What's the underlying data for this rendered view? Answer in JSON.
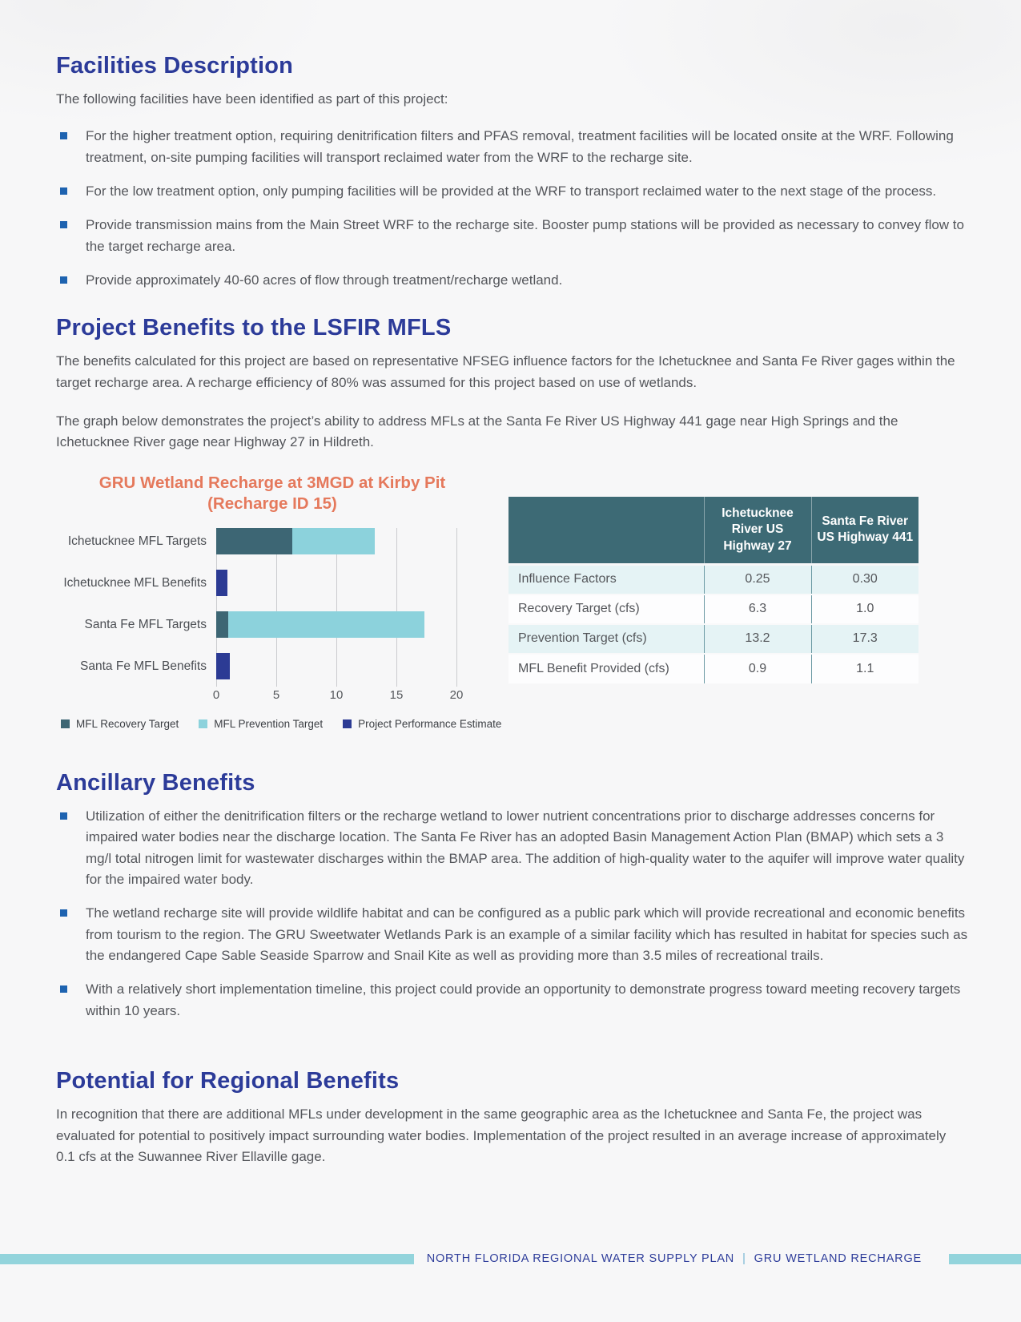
{
  "palette": {
    "heading_blue": "#2c3b99",
    "body_gray": "#54565b",
    "bullet_blue": "#1e63b0",
    "chart_title_salmon": "#e5795c",
    "table_header_teal": "#3d6a75",
    "table_row_tint": "#e5f3f5",
    "footer_bar_teal": "#93d4dc"
  },
  "facilities": {
    "title": "Facilities Description",
    "intro": "The following facilities have been identified as part of this project:",
    "bullets": [
      "For the higher treatment option, requiring denitrification filters and PFAS removal, treatment facilities will be located onsite at the WRF. Following treatment, on-site pumping facilities will transport reclaimed water from the WRF to the recharge site.",
      "For the low treatment option, only pumping facilities will be provided at the WRF to transport reclaimed water to the next stage of the process.",
      "Provide transmission mains from the Main Street WRF to the recharge site. Booster pump stations will be provided as necessary to convey flow to the target recharge area.",
      "Provide approximately 40-60 acres of flow through treatment/recharge wetland."
    ]
  },
  "project_benefits": {
    "title": "Project Benefits to the LSFIR MFLS",
    "paragraphs": [
      "The benefits calculated for this project are based on representative NFSEG influence factors for the Ichetucknee and Santa Fe River gages within the target recharge area. A recharge efficiency of 80% was assumed for this project based on use of wetlands.",
      "The graph below demonstrates the project’s ability to address MFLs at the Santa Fe River US Highway 441 gage near High Springs and the Ichetucknee River gage near Highway 27 in Hildreth."
    ]
  },
  "chart_data": {
    "type": "bar",
    "orientation": "horizontal",
    "title": "GRU Wetland Recharge at 3MGD at Kirby Pit (Recharge ID 15)",
    "title_lines": [
      "GRU Wetland Recharge at 3MGD at Kirby Pit",
      "(Recharge ID 15)"
    ],
    "categories": [
      "Ichetucknee MFL Targets",
      "Ichetucknee MFL Benefits",
      "Santa Fe MFL Targets",
      "Santa Fe MFL Benefits"
    ],
    "series": [
      {
        "name": "MFL Recovery Target",
        "color": "#3d6674",
        "values": [
          6.3,
          null,
          1.0,
          null
        ]
      },
      {
        "name": "MFL Prevention Target",
        "color": "#8cd2dc",
        "values": [
          13.2,
          null,
          17.3,
          null
        ]
      },
      {
        "name": "Project Performance Estimate",
        "color": "#2c3b94",
        "values": [
          null,
          0.9,
          null,
          1.1
        ]
      }
    ],
    "stacked": true,
    "xlabel": "",
    "ylabel": "",
    "xlim": [
      0,
      20
    ],
    "xticks": [
      0,
      5,
      10,
      15,
      20
    ],
    "grid": true,
    "legend_position": "bottom"
  },
  "benefits_table": {
    "corner_header": "",
    "columns": [
      "Ichetucknee River US Highway 27",
      "Santa Fe River US Highway 441"
    ],
    "rows": [
      {
        "label": "Influence Factors",
        "values": [
          "0.25",
          "0.30"
        ]
      },
      {
        "label": "Recovery Target (cfs)",
        "values": [
          "6.3",
          "1.0"
        ]
      },
      {
        "label": "Prevention Target (cfs)",
        "values": [
          "13.2",
          "17.3"
        ]
      },
      {
        "label": "MFL Benefit Provided (cfs)",
        "values": [
          "0.9",
          "1.1"
        ]
      }
    ]
  },
  "ancillary": {
    "title": "Ancillary Benefits",
    "bullets": [
      "Utilization of either the denitrification filters or the recharge wetland to lower nutrient concentrations prior to discharge addresses concerns for impaired water bodies near the discharge location. The Santa Fe River has an adopted Basin Management Action Plan (BMAP) which sets a 3 mg/l total nitrogen limit for wastewater discharges within the BMAP area. The addition of high-quality water to the aquifer will improve water quality for the impaired water body.",
      "The wetland recharge site will provide wildlife habitat and can be configured as a public park which will provide recreational and economic benefits from tourism to the region.  The GRU Sweetwater Wetlands Park is an example of a similar facility which has resulted in habitat for species such as the endangered Cape Sable Seaside Sparrow and Snail Kite as well as providing more than 3.5 miles of recreational trails.",
      "With a relatively short implementation timeline, this project could provide an opportunity to demonstrate progress toward meeting recovery targets within 10 years."
    ]
  },
  "regional": {
    "title": "Potential for Regional Benefits",
    "paragraph": "In recognition that there are additional MFLs under development in the same geographic area as the Ichetucknee and Santa Fe, the project was evaluated for potential to positively impact surrounding water bodies. Implementation of the project resulted in an average increase of approximately 0.1 cfs at the Suwannee River Ellaville gage."
  },
  "footer": {
    "left_text": "NORTH FLORIDA REGIONAL WATER SUPPLY PLAN",
    "separator": "|",
    "right_text": "GRU WETLAND RECHARGE"
  }
}
